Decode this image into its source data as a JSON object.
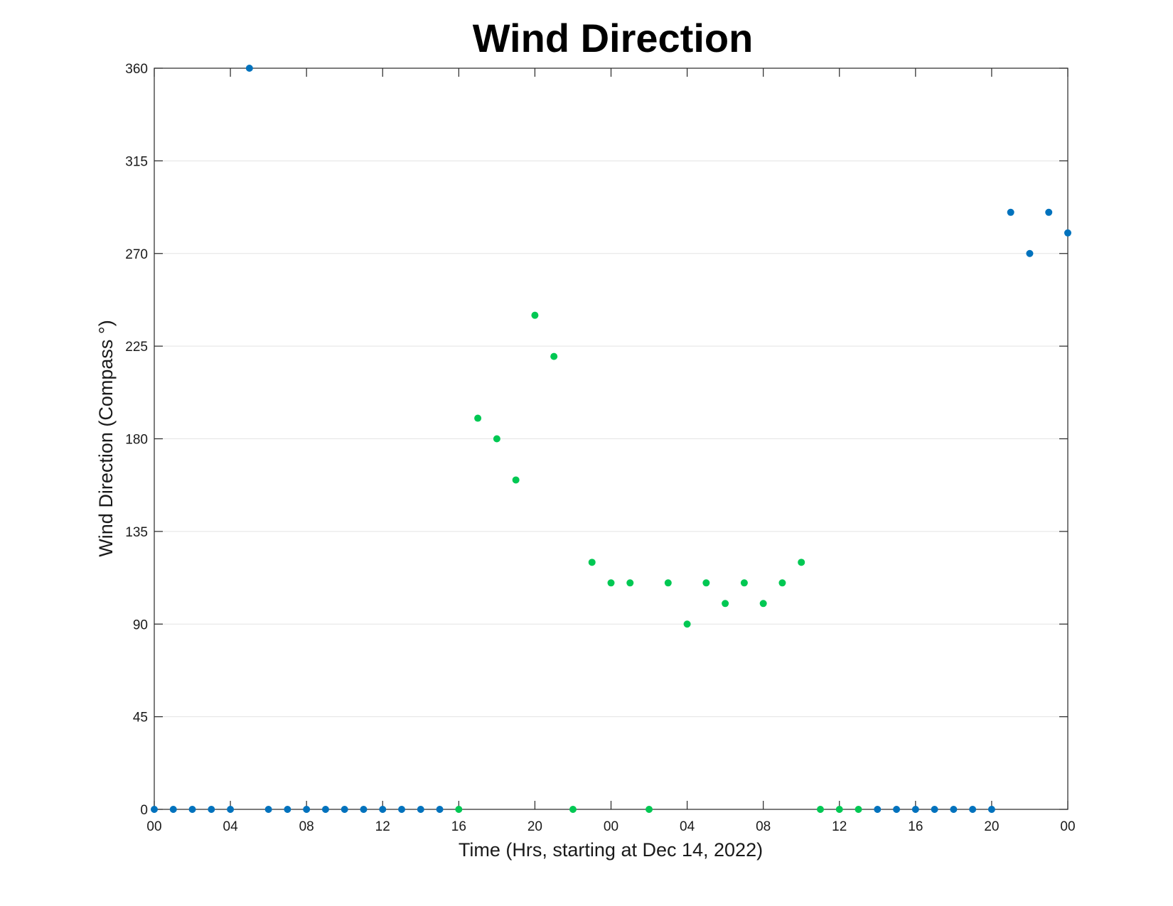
{
  "chart_data": {
    "type": "scatter",
    "title": "Wind Direction",
    "xlabel": "Time (Hrs, starting at Dec 14, 2022)",
    "ylabel": "Wind Direction (Compass °)",
    "xlim": [
      "2022-12-14 00:00",
      "2022-12-16 00:00"
    ],
    "ylim": [
      0,
      360
    ],
    "yticks": [
      0,
      45,
      90,
      135,
      180,
      225,
      270,
      315,
      360
    ],
    "xticks": [
      {
        "t": "2022-12-14 00:00",
        "label": "00"
      },
      {
        "t": "2022-12-14 04:00",
        "label": "04"
      },
      {
        "t": "2022-12-14 08:00",
        "label": "08"
      },
      {
        "t": "2022-12-14 12:00",
        "label": "12"
      },
      {
        "t": "2022-12-14 16:00",
        "label": "16"
      },
      {
        "t": "2022-12-14 20:00",
        "label": "20"
      },
      {
        "t": "2022-12-15 00:00",
        "label": "00"
      },
      {
        "t": "2022-12-15 04:00",
        "label": "04"
      },
      {
        "t": "2022-12-15 08:00",
        "label": "08"
      },
      {
        "t": "2022-12-15 12:00",
        "label": "12"
      },
      {
        "t": "2022-12-15 16:00",
        "label": "16"
      },
      {
        "t": "2022-12-15 20:00",
        "label": "20"
      },
      {
        "t": "2022-12-16 00:00",
        "label": "00"
      }
    ],
    "grid": "horizontal",
    "series": [
      {
        "color": "#0072bd",
        "points": [
          {
            "x": "2022-12-14 00:00",
            "y": 0
          },
          {
            "x": "2022-12-14 01:00",
            "y": 0
          },
          {
            "x": "2022-12-14 02:00",
            "y": 0
          },
          {
            "x": "2022-12-14 03:00",
            "y": 0
          },
          {
            "x": "2022-12-14 04:00",
            "y": 0
          },
          {
            "x": "2022-12-14 05:00",
            "y": 360
          },
          {
            "x": "2022-12-14 06:00",
            "y": 0
          },
          {
            "x": "2022-12-14 07:00",
            "y": 0
          },
          {
            "x": "2022-12-14 08:00",
            "y": 0
          },
          {
            "x": "2022-12-14 09:00",
            "y": 0
          },
          {
            "x": "2022-12-14 10:00",
            "y": 0
          },
          {
            "x": "2022-12-14 11:00",
            "y": 0
          },
          {
            "x": "2022-12-14 12:00",
            "y": 0
          },
          {
            "x": "2022-12-14 13:00",
            "y": 0
          },
          {
            "x": "2022-12-14 14:00",
            "y": 0
          },
          {
            "x": "2022-12-14 15:00",
            "y": 0
          },
          {
            "x": "2022-12-15 14:00",
            "y": 0
          },
          {
            "x": "2022-12-15 15:00",
            "y": 0
          },
          {
            "x": "2022-12-15 16:00",
            "y": 0
          },
          {
            "x": "2022-12-15 17:00",
            "y": 0
          },
          {
            "x": "2022-12-15 18:00",
            "y": 0
          },
          {
            "x": "2022-12-15 19:00",
            "y": 0
          },
          {
            "x": "2022-12-15 20:00",
            "y": 0
          },
          {
            "x": "2022-12-15 21:00",
            "y": 290
          },
          {
            "x": "2022-12-15 22:00",
            "y": 270
          },
          {
            "x": "2022-12-15 23:00",
            "y": 290
          },
          {
            "x": "2022-12-16 00:00",
            "y": 280
          }
        ]
      },
      {
        "color": "#00c853",
        "points": [
          {
            "x": "2022-12-14 16:00",
            "y": 0
          },
          {
            "x": "2022-12-14 17:00",
            "y": 190
          },
          {
            "x": "2022-12-14 18:00",
            "y": 180
          },
          {
            "x": "2022-12-14 19:00",
            "y": 160
          },
          {
            "x": "2022-12-14 20:00",
            "y": 240
          },
          {
            "x": "2022-12-14 21:00",
            "y": 220
          },
          {
            "x": "2022-12-14 22:00",
            "y": 0
          },
          {
            "x": "2022-12-14 23:00",
            "y": 120
          },
          {
            "x": "2022-12-15 00:00",
            "y": 110
          },
          {
            "x": "2022-12-15 01:00",
            "y": 110
          },
          {
            "x": "2022-12-15 02:00",
            "y": 0
          },
          {
            "x": "2022-12-15 03:00",
            "y": 110
          },
          {
            "x": "2022-12-15 04:00",
            "y": 90
          },
          {
            "x": "2022-12-15 05:00",
            "y": 110
          },
          {
            "x": "2022-12-15 06:00",
            "y": 100
          },
          {
            "x": "2022-12-15 07:00",
            "y": 110
          },
          {
            "x": "2022-12-15 08:00",
            "y": 100
          },
          {
            "x": "2022-12-15 09:00",
            "y": 110
          },
          {
            "x": "2022-12-15 10:00",
            "y": 120
          },
          {
            "x": "2022-12-15 11:00",
            "y": 0
          },
          {
            "x": "2022-12-15 12:00",
            "y": 0
          },
          {
            "x": "2022-12-15 13:00",
            "y": 0
          }
        ]
      }
    ]
  }
}
